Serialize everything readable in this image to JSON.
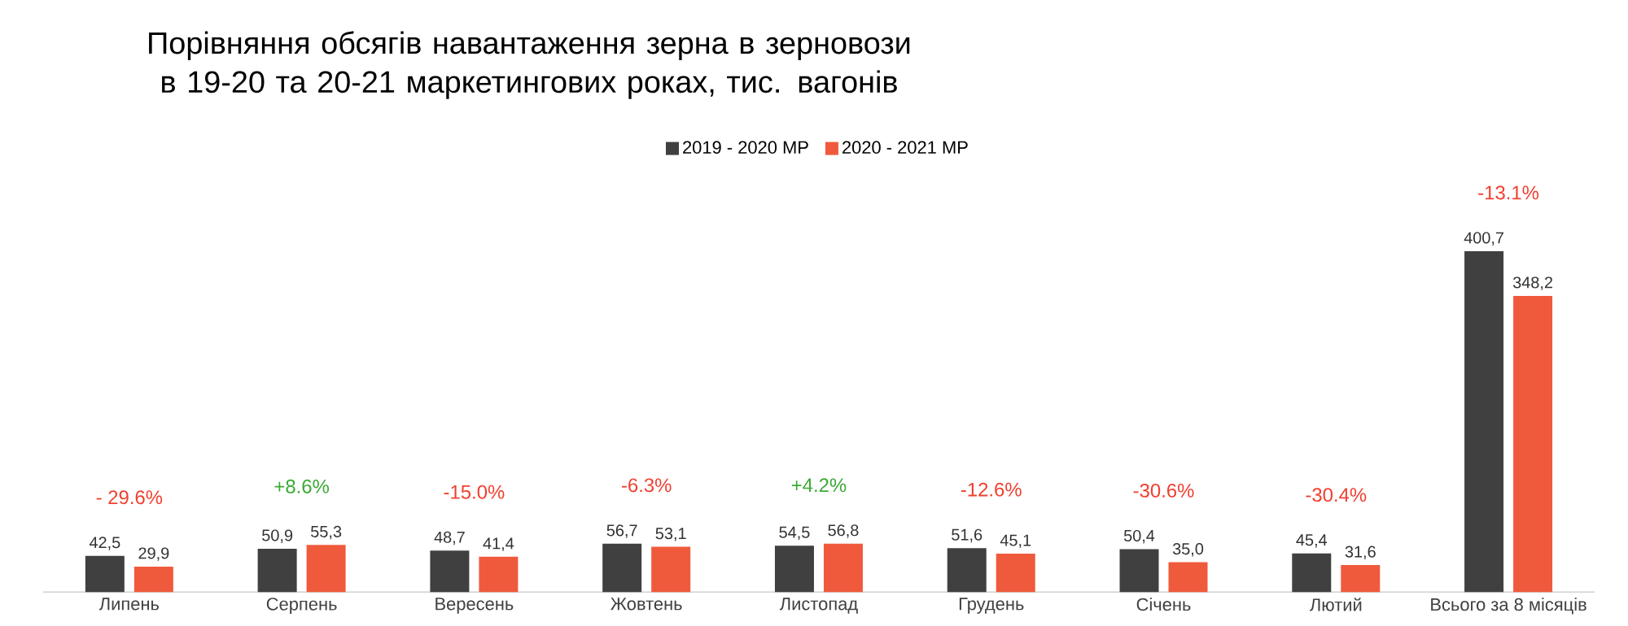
{
  "chart_data": {
    "type": "bar",
    "title": "Порівняння обсягів навантаження зерна в зерновози в 19-20 та 20-21 маркетингових роках, тис. вагонів",
    "categories": [
      "Липень",
      "Серпень",
      "Вересень",
      "Жовтень",
      "Листопад",
      "Грудень",
      "Січень",
      "Лютий",
      "Всього за 8 місяців"
    ],
    "series": [
      {
        "name": "2019 - 2020 МР",
        "color": "#404040",
        "values": [
          42.5,
          50.9,
          48.7,
          56.7,
          54.5,
          51.6,
          50.4,
          45.4,
          400.7
        ],
        "value_labels": [
          "42,5",
          "50,9",
          "48,7",
          "56,7",
          "54,5",
          "51,6",
          "50,4",
          "45,4",
          "400,7"
        ]
      },
      {
        "name": "2020 - 2021 МР",
        "color": "#f05a3c",
        "values": [
          29.9,
          55.3,
          41.4,
          53.1,
          56.8,
          45.1,
          35.0,
          31.6,
          348.2
        ],
        "value_labels": [
          "29,9",
          "55,3",
          "41,4",
          "53,1",
          "56,8",
          "45,1",
          "35,0",
          "31,6",
          "348,2"
        ]
      }
    ],
    "legend": "top",
    "annotations": [
      "- 29.6%",
      "+8.6%",
      "-15.0%",
      "-6.3%",
      "+4.2%",
      "-12.6%",
      "-30.6%",
      "-30.4%",
      "-13.1%"
    ]
  }
}
